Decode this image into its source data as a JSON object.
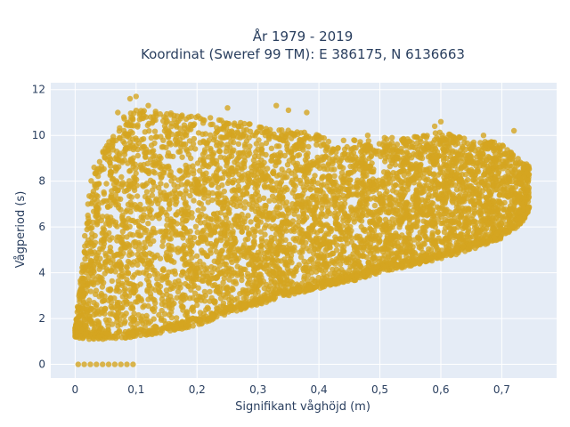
{
  "chart_data": {
    "type": "scatter",
    "title_line1": "År 1979 - 2019",
    "title_line2": "Koordinat (Sweref 99 TM): E 386175, N 6136663",
    "xlabel": "Signifikant våghöjd (m)",
    "ylabel": "Vågperiod (s)",
    "xlim": [
      -0.04,
      0.79
    ],
    "ylim": [
      -0.6,
      12.3
    ],
    "x_ticks": [
      0,
      0.1,
      0.2,
      0.3,
      0.4,
      0.5,
      0.6,
      0.7
    ],
    "x_tick_labels": [
      "0",
      "0,1",
      "0,2",
      "0,3",
      "0,4",
      "0,5",
      "0,6",
      "0,7"
    ],
    "y_ticks": [
      0,
      2,
      4,
      6,
      8,
      10,
      12
    ],
    "y_tick_labels": [
      "0",
      "2",
      "4",
      "6",
      "8",
      "10",
      "12"
    ],
    "grid": true,
    "colors": {
      "marker": "#d4a520",
      "plot_bg": "#e5ecf6",
      "grid": "#ffffff",
      "text": "#2a3f5f"
    },
    "series": [
      {
        "points_zero_period": [
          [
            0.005,
            0
          ],
          [
            0.015,
            0
          ],
          [
            0.025,
            0
          ],
          [
            0.035,
            0
          ],
          [
            0.045,
            0
          ],
          [
            0.055,
            0
          ],
          [
            0.065,
            0
          ],
          [
            0.075,
            0
          ],
          [
            0.085,
            0
          ],
          [
            0.095,
            0
          ]
        ],
        "envelope": [
          {
            "x": 0.0,
            "y_min": 1.2,
            "y_max": 1.6
          },
          {
            "x": 0.01,
            "y_min": 1.1,
            "y_max": 4.0
          },
          {
            "x": 0.02,
            "y_min": 1.1,
            "y_max": 7.0
          },
          {
            "x": 0.03,
            "y_min": 1.1,
            "y_max": 8.8
          },
          {
            "x": 0.05,
            "y_min": 1.1,
            "y_max": 9.5
          },
          {
            "x": 0.08,
            "y_min": 1.15,
            "y_max": 10.8
          },
          {
            "x": 0.1,
            "y_min": 1.2,
            "y_max": 11.2
          },
          {
            "x": 0.15,
            "y_min": 1.4,
            "y_max": 11.0
          },
          {
            "x": 0.2,
            "y_min": 1.7,
            "y_max": 10.9
          },
          {
            "x": 0.25,
            "y_min": 2.2,
            "y_max": 10.6
          },
          {
            "x": 0.3,
            "y_min": 2.6,
            "y_max": 10.5
          },
          {
            "x": 0.35,
            "y_min": 3.0,
            "y_max": 10.3
          },
          {
            "x": 0.4,
            "y_min": 3.3,
            "y_max": 10.0
          },
          {
            "x": 0.45,
            "y_min": 3.6,
            "y_max": 9.8
          },
          {
            "x": 0.5,
            "y_min": 4.0,
            "y_max": 9.9
          },
          {
            "x": 0.55,
            "y_min": 4.3,
            "y_max": 9.9
          },
          {
            "x": 0.6,
            "y_min": 4.6,
            "y_max": 10.2
          },
          {
            "x": 0.65,
            "y_min": 5.0,
            "y_max": 9.8
          },
          {
            "x": 0.7,
            "y_min": 5.5,
            "y_max": 9.7
          },
          {
            "x": 0.73,
            "y_min": 6.1,
            "y_max": 8.9
          },
          {
            "x": 0.745,
            "y_min": 6.6,
            "y_max": 8.7
          }
        ],
        "outliers": [
          [
            0.09,
            11.6
          ],
          [
            0.1,
            11.7
          ],
          [
            0.12,
            11.3
          ],
          [
            0.25,
            11.2
          ],
          [
            0.33,
            11.3
          ],
          [
            0.35,
            11.1
          ],
          [
            0.38,
            11.0
          ],
          [
            0.6,
            10.6
          ],
          [
            0.59,
            10.4
          ],
          [
            0.67,
            10.0
          ],
          [
            0.72,
            10.2
          ],
          [
            0.59,
            9.8
          ],
          [
            0.52,
            9.9
          ],
          [
            0.48,
            10.0
          ],
          [
            0.07,
            11.0
          ],
          [
            0.08,
            10.8
          ]
        ]
      }
    ]
  }
}
